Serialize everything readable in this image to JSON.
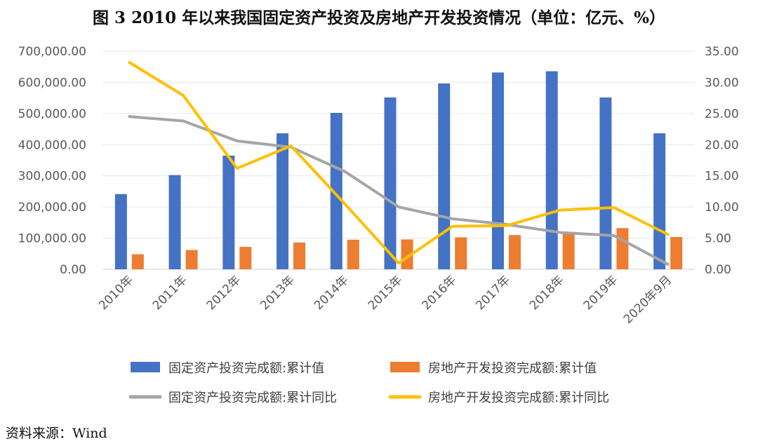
{
  "header": {
    "title": "图 3   2010 年以来我国固定资产投资及房地产开发投资情况（单位：亿元、%）"
  },
  "footer": {
    "source": "资料来源：Wind"
  },
  "chart_data": {
    "type": "bar",
    "title": "图 3   2010 年以来我国固定资产投资及房地产开发投资情况（单位：亿元、%）",
    "categories": [
      "2010年",
      "2011年",
      "2012年",
      "2013年",
      "2014年",
      "2015年",
      "2016年",
      "2017年",
      "2018年",
      "2019年",
      "2020年9月"
    ],
    "y_left": {
      "min": 0,
      "max": 700000,
      "step": 100000,
      "tick_labels": [
        "0.00",
        "100,000.00",
        "200,000.00",
        "300,000.00",
        "400,000.00",
        "500,000.00",
        "600,000.00",
        "700,000.00"
      ]
    },
    "y_right": {
      "min": 0,
      "max": 35,
      "step": 5,
      "tick_labels": [
        "0.00",
        "5.00",
        "10.00",
        "15.00",
        "20.00",
        "25.00",
        "30.00",
        "35.00"
      ]
    },
    "series": [
      {
        "name": "固定资产投资完成额:累计值",
        "type": "bar",
        "axis": "left",
        "color": "#4472C4",
        "values": [
          241400,
          302400,
          364900,
          436500,
          502000,
          551600,
          596500,
          631700,
          635600,
          551500,
          436500
        ]
      },
      {
        "name": "房地产开发投资完成额:累计值",
        "type": "bar",
        "axis": "left",
        "color": "#ED7D31",
        "values": [
          48300,
          61800,
          71800,
          86000,
          95000,
          95900,
          102600,
          109800,
          120300,
          132200,
          103500
        ]
      },
      {
        "name": "固定资产投资完成额:累计同比",
        "type": "line",
        "axis": "right",
        "color": "#A5A5A5",
        "values": [
          24.5,
          23.8,
          20.6,
          19.6,
          15.7,
          10.0,
          8.1,
          7.2,
          5.9,
          5.4,
          0.8
        ]
      },
      {
        "name": "房地产开发投资完成额:累计同比",
        "type": "line",
        "axis": "right",
        "color": "#FFC000",
        "values": [
          33.2,
          27.9,
          16.2,
          19.8,
          10.5,
          1.0,
          6.9,
          7.0,
          9.5,
          9.9,
          5.6
        ]
      }
    ],
    "grid": true,
    "legend": "bottom"
  }
}
